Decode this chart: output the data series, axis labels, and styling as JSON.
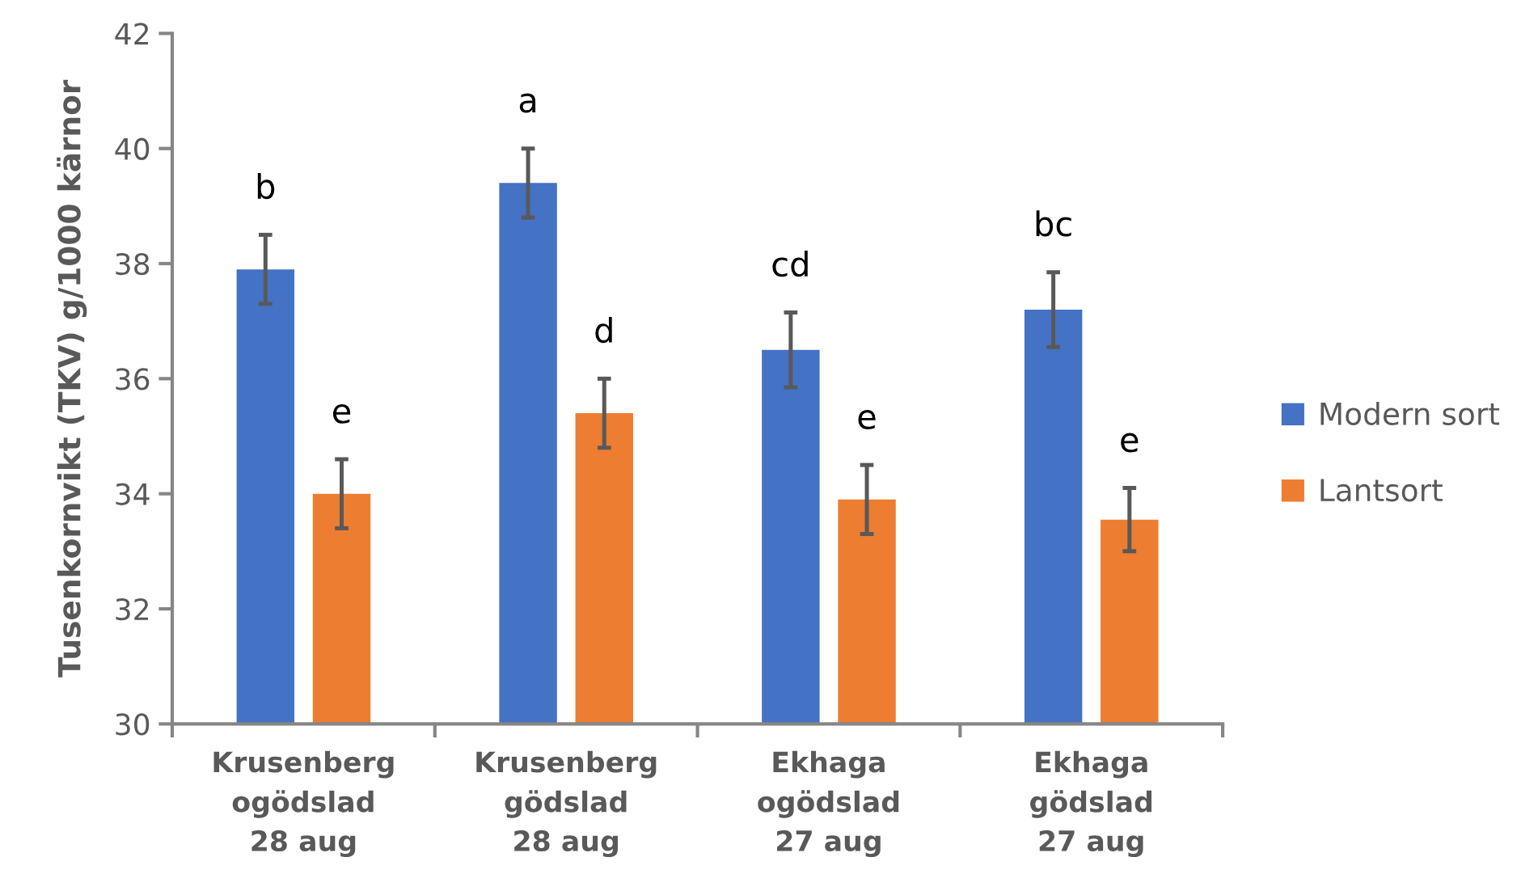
{
  "chart_data": {
    "type": "bar",
    "ylabel": "Tusenkornvikt (TKV) g/1000 kärnor",
    "categories": [
      "Krusenberg\nogödslad\n28 aug",
      "Krusenberg\ngödslad\n28 aug",
      "Ekhaga\nogödslad\n27 aug",
      "Ekhaga\ngödslad\n27 aug"
    ],
    "series": [
      {
        "name": "Modern sort",
        "color": "#4472c4",
        "values": [
          37.9,
          39.4,
          36.5,
          37.2
        ],
        "errors": [
          0.6,
          0.6,
          0.65,
          0.65
        ],
        "value_labels": [
          "b",
          "a",
          "cd",
          "bc"
        ]
      },
      {
        "name": "Lantsort",
        "color": "#ed7d31",
        "values": [
          34.0,
          35.4,
          33.9,
          33.55
        ],
        "errors": [
          0.6,
          0.6,
          0.6,
          0.55
        ],
        "value_labels": [
          "e",
          "d",
          "e",
          "e"
        ]
      }
    ],
    "ylim": [
      30,
      42
    ],
    "yticks": [
      30,
      32,
      34,
      36,
      38,
      40,
      42
    ],
    "grid": false,
    "legend": "right"
  }
}
